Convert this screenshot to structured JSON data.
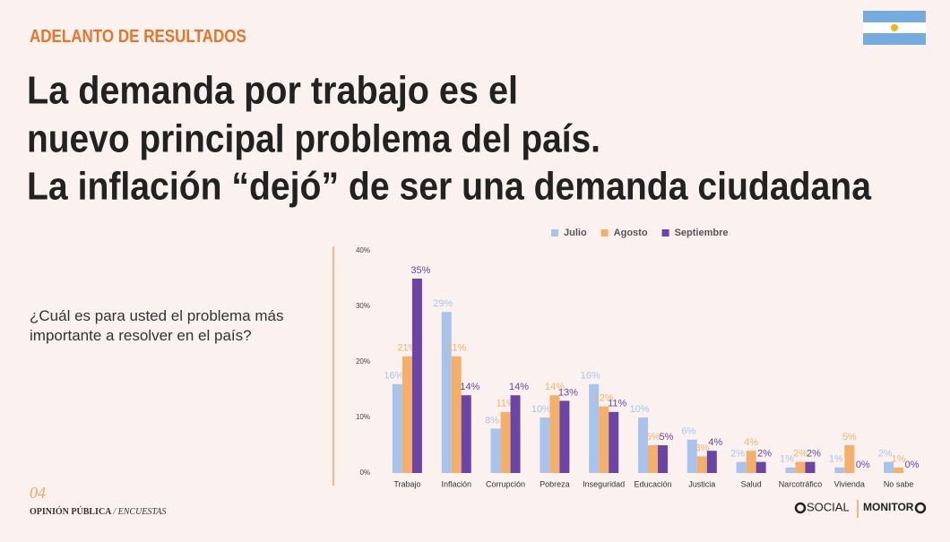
{
  "header": "ADELANTO DE RESULTADOS",
  "title": [
    "La demanda por trabajo es el",
    "nuevo principal problema del país.",
    "La inflación “dejó” de ser una demanda ciudadana"
  ],
  "question": "¿Cuál es para usted el problema más importante a resolver en el país?",
  "footer": {
    "page": "04",
    "section": "OPINIÓN PÚBLICA",
    "subsection": "/ ENCUESTAS",
    "logos": [
      "SOCIAL",
      "MONITOR"
    ]
  },
  "chart_data": {
    "type": "bar",
    "categories": [
      "Trabajo",
      "Inflación",
      "Corrupción",
      "Pobreza",
      "Inseguridad",
      "Educación",
      "Justicia",
      "Salud",
      "Narcotráfico",
      "Vivienda",
      "No sabe"
    ],
    "series": [
      {
        "name": "Julio",
        "color": "#a9c4ec",
        "values": [
          16,
          29,
          8,
          10,
          16,
          10,
          6,
          2,
          1,
          1,
          2
        ],
        "value_labels": [
          "16%",
          "29%",
          "8%",
          "10%",
          "16%",
          "10%",
          "6%",
          "2%",
          "1%",
          "1%",
          "2%"
        ]
      },
      {
        "name": "Agosto",
        "color": "#f4b06b",
        "values": [
          21,
          21,
          11,
          14,
          12,
          5,
          3,
          4,
          2,
          5,
          1
        ],
        "value_labels": [
          "21%",
          "21%",
          "11%",
          "14%",
          "12%",
          "5%",
          "3%",
          "4%",
          "2%",
          "5%",
          "1%"
        ]
      },
      {
        "name": "Septiembre",
        "color": "#6a45a6",
        "values": [
          35,
          14,
          14,
          13,
          11,
          5,
          4,
          2,
          2,
          0,
          0
        ],
        "value_labels": [
          "35%",
          "14%",
          "14%",
          "13%",
          "11%",
          "5%",
          "4%",
          "2%",
          "2%",
          "0%",
          "0%"
        ]
      }
    ],
    "ylim": [
      0,
      40
    ],
    "yticks": [
      {
        "value": 0,
        "label": "0%"
      },
      {
        "value": 10,
        "label": "10%"
      },
      {
        "value": 20,
        "label": "20%"
      },
      {
        "value": 30,
        "label": "30%"
      },
      {
        "value": 40,
        "label": "40%"
      }
    ],
    "grid": false,
    "legend": "top"
  }
}
